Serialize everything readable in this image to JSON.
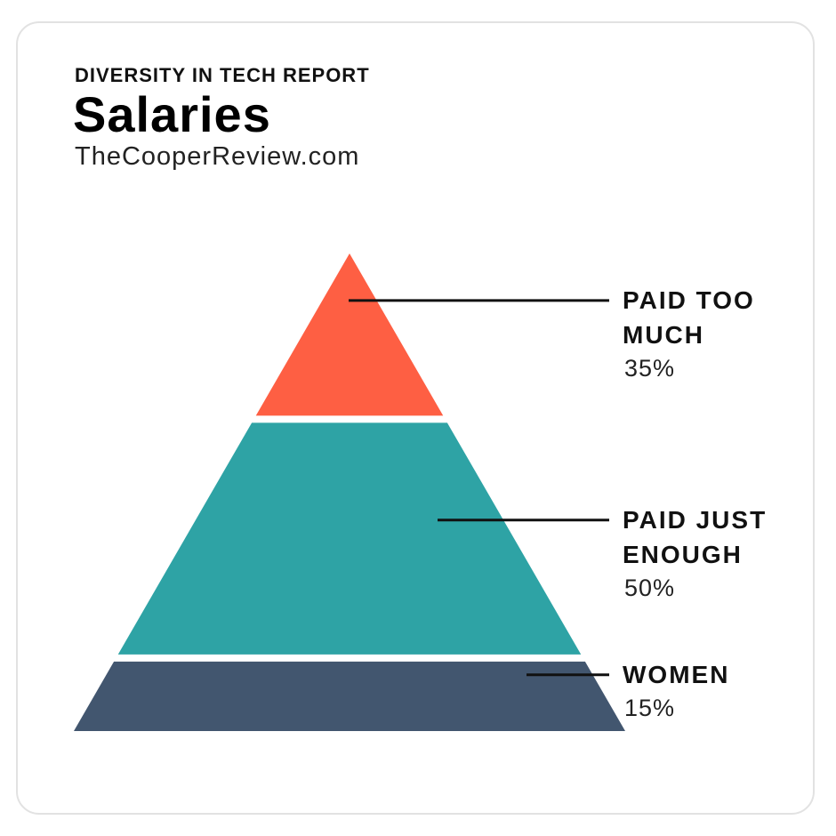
{
  "chart_data": {
    "type": "pyramid",
    "supertitle": "DIVERSITY IN TECH REPORT",
    "title": "Salaries",
    "source": "TheCooperReview.com",
    "categories": [
      "PAID TOO MUCH",
      "PAID JUST ENOUGH",
      "WOMEN"
    ],
    "values": [
      35,
      50,
      15
    ],
    "value_labels": [
      "35%",
      "50%",
      "15%"
    ],
    "colors": [
      "#fe5f43",
      "#2ea3a5",
      "#42566f"
    ]
  }
}
